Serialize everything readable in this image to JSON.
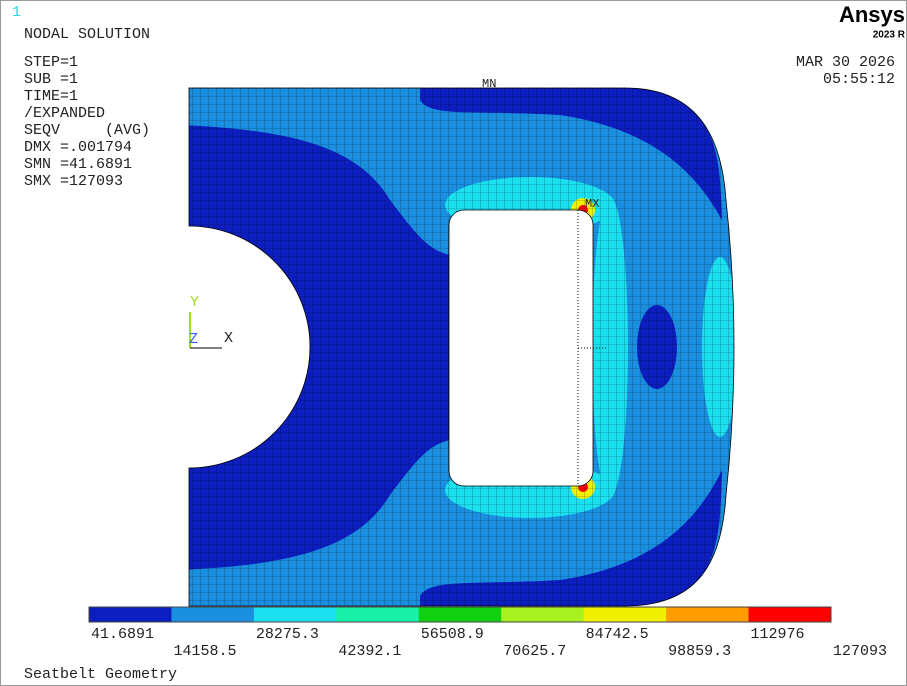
{
  "window_number": "1",
  "header": {
    "title": "NODAL SOLUTION",
    "lines": [
      "STEP=1",
      "SUB =1",
      "TIME=1",
      "/EXPANDED",
      "SEQV     (AVG)",
      "DMX =.001794",
      "SMN =41.6891",
      "SMX =127093"
    ]
  },
  "brand": {
    "name": "Ansys",
    "version": "2023 R"
  },
  "date": "MAR 30 2026",
  "time": "05:55:12",
  "markers": {
    "min": "MN",
    "max": "MX"
  },
  "triad": {
    "y": "Y",
    "z": "Z",
    "x": "X"
  },
  "legend": {
    "colors": [
      "#0d1ec0",
      "#1a8fe0",
      "#1ae0f0",
      "#1af0a8",
      "#10d010",
      "#a8f020",
      "#f0f000",
      "#ff9c00",
      "#ff0000"
    ],
    "labels": [
      "41.6891",
      "14158.5",
      "28275.3",
      "42392.1",
      "56508.9",
      "70625.7",
      "84742.5",
      "98859.3",
      "112976",
      "127093"
    ]
  },
  "footer": "Seatbelt Geometry"
}
